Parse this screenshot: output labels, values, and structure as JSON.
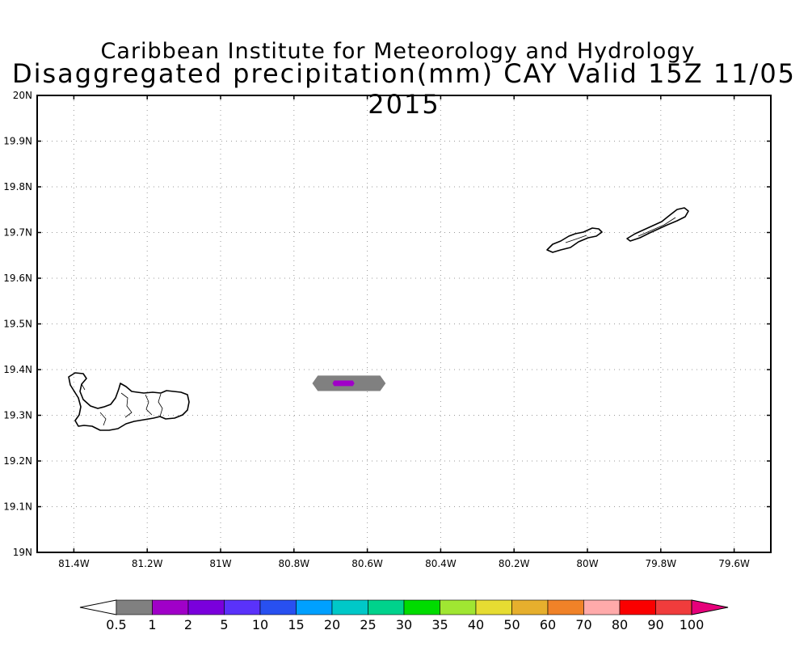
{
  "titles": {
    "line1": "Caribbean Institute for Meteorology and Hydrology",
    "line2": "Disaggregated precipitation(mm) CAY Valid 15Z 11/05 2015"
  },
  "map": {
    "lon_range": [
      -81.5,
      -79.5
    ],
    "lat_range": [
      19.0,
      20.0
    ],
    "grid": "dotted",
    "lat_ticks": [
      {
        "value": 20.0,
        "label": "20N"
      },
      {
        "value": 19.9,
        "label": "19.9N"
      },
      {
        "value": 19.8,
        "label": "19.8N"
      },
      {
        "value": 19.7,
        "label": "19.7N"
      },
      {
        "value": 19.6,
        "label": "19.6N"
      },
      {
        "value": 19.5,
        "label": "19.5N"
      },
      {
        "value": 19.4,
        "label": "19.4N"
      },
      {
        "value": 19.3,
        "label": "19.3N"
      },
      {
        "value": 19.2,
        "label": "19.2N"
      },
      {
        "value": 19.1,
        "label": "19.1N"
      },
      {
        "value": 19.0,
        "label": "19N"
      }
    ],
    "lon_ticks": [
      {
        "value": -81.4,
        "label": "81.4W"
      },
      {
        "value": -81.2,
        "label": "81.2W"
      },
      {
        "value": -81.0,
        "label": "81W"
      },
      {
        "value": -80.8,
        "label": "80.8W"
      },
      {
        "value": -80.6,
        "label": "80.6W"
      },
      {
        "value": -80.4,
        "label": "80.4W"
      },
      {
        "value": -80.2,
        "label": "80.2W"
      },
      {
        "value": -80.0,
        "label": "80W"
      },
      {
        "value": -79.8,
        "label": "79.8W"
      },
      {
        "value": -79.6,
        "label": "79.6W"
      }
    ],
    "precip_areas": [
      {
        "range": "0.5-1",
        "color": "#808080",
        "center": [
          -80.65,
          19.37
        ],
        "half_width_deg": [
          0.1,
          0.017
        ]
      },
      {
        "range": "1-2",
        "color": "#a000c8",
        "center": [
          -80.665,
          19.37
        ],
        "half_width_deg": [
          0.03,
          0.006
        ]
      }
    ],
    "islands": [
      {
        "name-icon": "grand-cayman-outline-icon"
      },
      {
        "name-icon": "little-cayman-outline-icon"
      },
      {
        "name-icon": "cayman-brac-outline-icon"
      }
    ]
  },
  "colorbar": {
    "low_color": "#ffffff",
    "high_color": "#e6007a",
    "bins": [
      {
        "color": "#808080"
      },
      {
        "color": "#a000c8"
      },
      {
        "color": "#7a00dc"
      },
      {
        "color": "#5a32fa"
      },
      {
        "color": "#2850f0"
      },
      {
        "color": "#00a0ff"
      },
      {
        "color": "#00c8c8"
      },
      {
        "color": "#00d28c"
      },
      {
        "color": "#00dc00"
      },
      {
        "color": "#a0e632"
      },
      {
        "color": "#e6dc32"
      },
      {
        "color": "#e6af2d"
      },
      {
        "color": "#f08228"
      },
      {
        "color": "#ffaaaa"
      },
      {
        "color": "#fa0000"
      },
      {
        "color": "#f03c3c"
      }
    ],
    "labels": [
      "0.5",
      "1",
      "2",
      "5",
      "10",
      "15",
      "20",
      "25",
      "30",
      "35",
      "40",
      "50",
      "60",
      "70",
      "80",
      "90",
      "100"
    ]
  }
}
